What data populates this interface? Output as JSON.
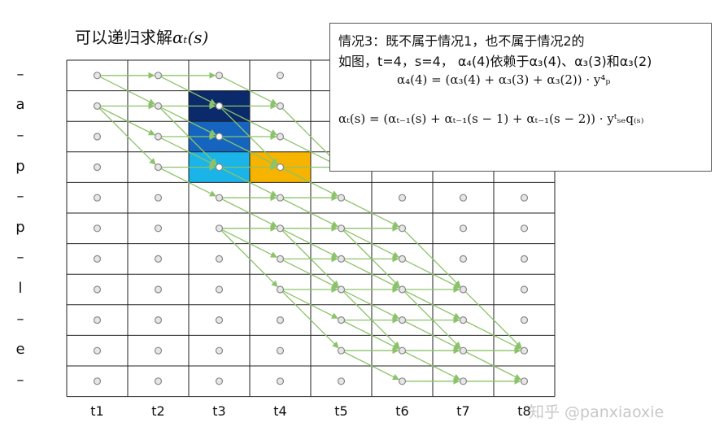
{
  "title": {
    "prefix": "可以递归求解",
    "math": "αₜ(s)"
  },
  "row_labels": [
    "–",
    "a",
    "–",
    "p",
    "–",
    "p",
    "–",
    "l",
    "–",
    "e",
    "–"
  ],
  "col_labels": [
    "t1",
    "t2",
    "t3",
    "t4",
    "t5",
    "t6",
    "t7",
    "t8"
  ],
  "highlights": [
    {
      "row": 1,
      "col": 2,
      "color": "#0a2a6b"
    },
    {
      "row": 2,
      "col": 2,
      "color": "#1565c0"
    },
    {
      "row": 3,
      "col": 2,
      "color": "#1ab4e8"
    },
    {
      "row": 3,
      "col": 3,
      "color": "#f6b400"
    }
  ],
  "note": {
    "line1": "情况3：既不属于情况1，也不属于情况2的",
    "line2": "如图，t=4，s=4， α₄(4)依赖于α₃(4)、α₃(3)和α₃(2)",
    "formula1": "α₄(4) = (α₃(4) + α₃(3) + α₃(2)) · y⁴ₚ",
    "formula2": "αₜ(s) = (αₜ₋₁(s) + αₜ₋₁(s − 1) + αₜ₋₁(s − 2)) · yᵗₛₑq₍ₛ₎"
  },
  "watermark": "知乎 @panxiaoxie",
  "colors": {
    "arrow": "#8cc36a",
    "grid_line": "#222222",
    "node_fill": "#e6e6e6",
    "node_stroke": "#888888"
  }
}
